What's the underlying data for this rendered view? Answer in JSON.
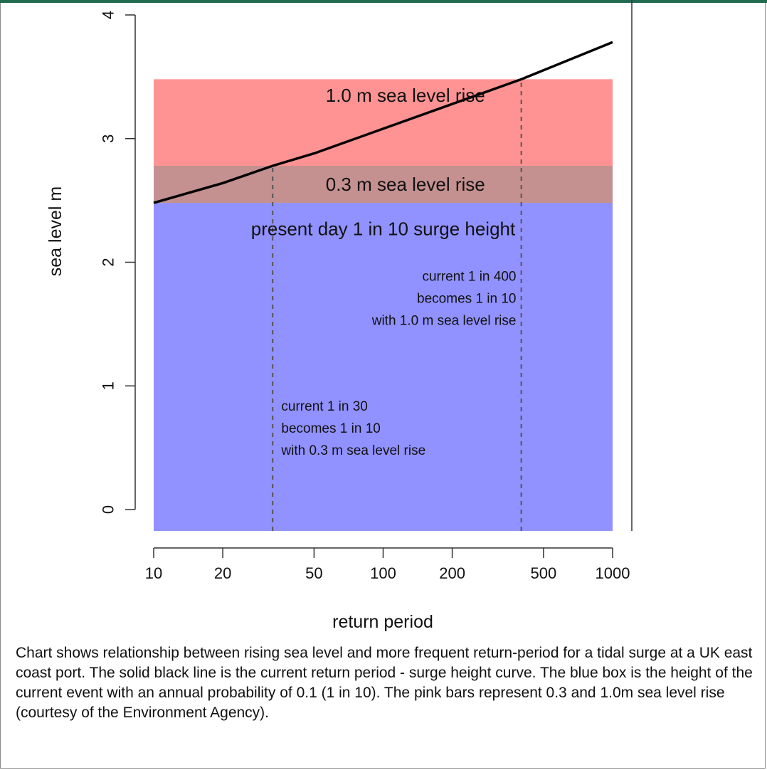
{
  "chart_data": {
    "type": "line",
    "xlabel": "return period",
    "ylabel": "sea level m",
    "x_scale": "log",
    "xlim": [
      10,
      1000
    ],
    "ylim": [
      0,
      4
    ],
    "x_ticks": [
      10,
      20,
      50,
      100,
      200,
      500,
      1000
    ],
    "x_tick_labels": [
      "10",
      "20",
      "50",
      "100",
      "200",
      "500",
      "1000"
    ],
    "y_ticks": [
      0,
      1,
      2,
      3,
      4
    ],
    "y_tick_labels": [
      "0",
      "1",
      "2",
      "3",
      "4"
    ],
    "grid": false,
    "series": [
      {
        "x": [
          10,
          20,
          33,
          50,
          100,
          200,
          400,
          1000
        ],
        "y": [
          2.48,
          2.64,
          2.78,
          2.88,
          3.08,
          3.28,
          3.48,
          3.78
        ]
      }
    ],
    "bands": [
      {
        "ymin": 2.48,
        "ymax": 3.48,
        "xmin": 10,
        "xmax": 1000,
        "color": "#ff9393",
        "label": "1.0 m sea level rise",
        "label_x": 125,
        "label_y": 3.35
      },
      {
        "ymin": 2.48,
        "ymax": 2.78,
        "xmin": 10,
        "xmax": 1000,
        "color": "#c49090",
        "label": "0.3 m sea level rise",
        "label_x": 125,
        "label_y": 2.63
      },
      {
        "ymin": 0,
        "ymax": 2.48,
        "xmin": 10,
        "xmax": 1000,
        "color": "#9191ff",
        "label": "present day 1 in 10 surge height",
        "label_x": 100,
        "label_y": 2.27
      }
    ],
    "vlines": [
      {
        "x": 33,
        "ymin": 0,
        "ymax": 2.78
      },
      {
        "x": 400,
        "ymin": 0,
        "ymax": 3.48
      }
    ],
    "annotations": [
      {
        "x": 36,
        "y": 0.8,
        "align": "left",
        "lines": [
          "current 1 in 30",
          "becomes 1 in 10",
          "with 0.3 m sea level rise"
        ]
      },
      {
        "x": 380,
        "y": 1.85,
        "align": "right",
        "lines": [
          "current 1 in 400",
          "becomes 1 in 10",
          "with 1.0 m sea level rise"
        ]
      }
    ],
    "colors": {
      "line": "#000000",
      "axis": "#333333",
      "vline": "#555555"
    }
  },
  "caption": "Chart shows relationship between rising sea level and more frequent return-period for a tidal surge at a UK east coast port. The solid black line is the current return period - surge height curve. The blue box is the height of the current event with an annual probability of 0.1 (1 in 10). The pink bars represent 0.3 and 1.0m sea level rise (courtesy of the Environment Agency)."
}
